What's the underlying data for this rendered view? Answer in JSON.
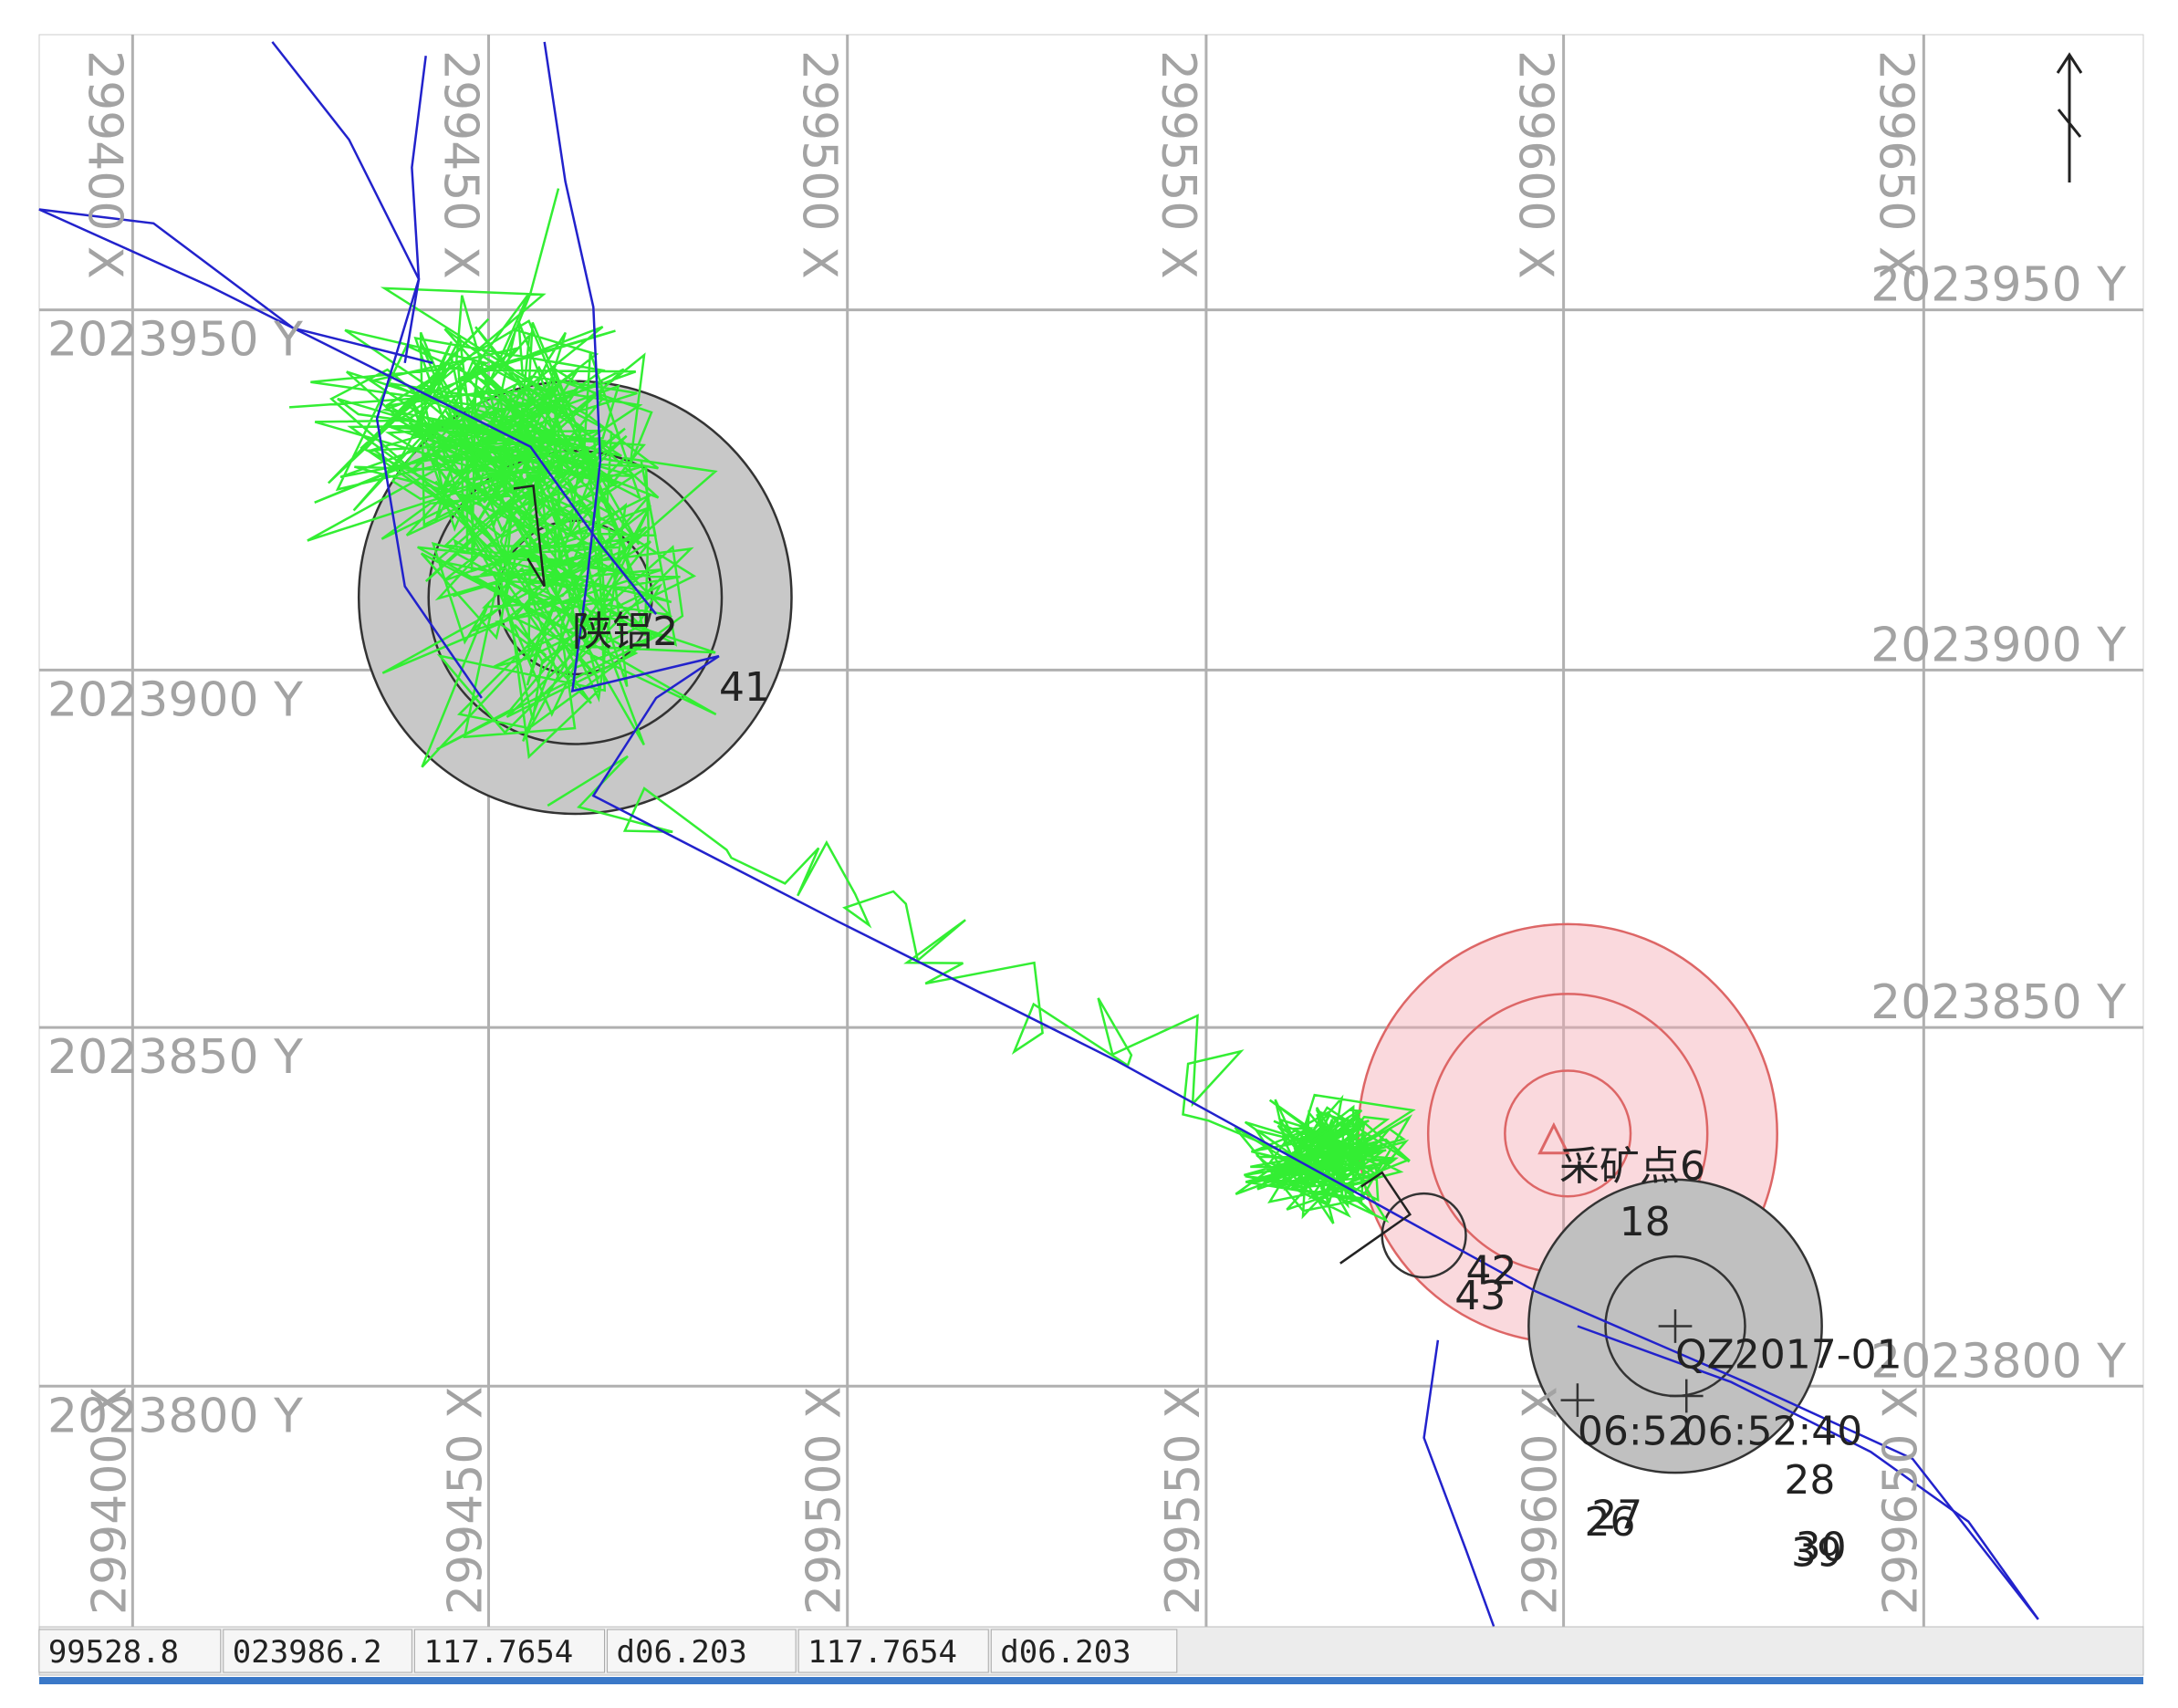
{
  "map": {
    "x_grid_top": [
      "299400 X",
      "299450 X",
      "299500 X",
      "299550 X",
      "299600 X",
      "299650 X"
    ],
    "x_grid_bottom": [
      "299400 X",
      "299450 X",
      "299500 X",
      "299550 X",
      "299600 X",
      "299650 X"
    ],
    "y_grid_left": [
      "2023950 Y",
      "2023900 Y",
      "2023850 Y",
      "2023800 Y"
    ],
    "y_grid_right": [
      "2023950 Y",
      "2023900 Y",
      "2023850 Y",
      "2023800 Y"
    ],
    "labels": [
      "陕铝2",
      "41",
      "采矿点6",
      "18",
      "42",
      "43",
      "QZ2017-01",
      "06:52",
      "06:52:40",
      "28",
      "26",
      "27",
      "39",
      "30"
    ]
  },
  "status_bar": [
    "99528.8",
    "023986.2",
    "117.7654",
    "d06.203",
    "117.7654",
    "d06.203"
  ]
}
